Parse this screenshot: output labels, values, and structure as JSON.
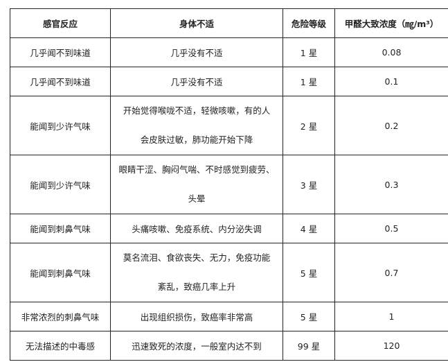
{
  "headers": [
    "感官反应",
    "身体不适",
    "危险等级",
    "甲醛大致浓度（㎎/m³）"
  ],
  "rows": [
    {
      "sense": "几乎闻不到味道",
      "symptom": [
        "几乎没有不适"
      ],
      "level": "1 星",
      "conc": "0.08"
    },
    {
      "sense": "几乎闻不到味道",
      "symptom": [
        "几乎没有不适"
      ],
      "level": "1 星",
      "conc": "0.1"
    },
    {
      "sense": "能闻到少许气味",
      "symptom": [
        "开始觉得喉咙不适，轻微咳嗽，有的人",
        "会皮肤过敏，肺功能开始下降"
      ],
      "level": "2 星",
      "conc": "0.2"
    },
    {
      "sense": "能闻到少许气味",
      "symptom": [
        "眼睛干涩、胸闷气喘、不时感觉到疲劳、",
        "头晕"
      ],
      "level": "3 星",
      "conc": "0.3"
    },
    {
      "sense": "能闻到刺鼻气味",
      "symptom": [
        "头痛咳嗽、免疫系统、内分泌失调"
      ],
      "level": "4 星",
      "conc": "0.5"
    },
    {
      "sense": "能闻到刺鼻气味",
      "symptom": [
        "莫名流泪、食欲丧失、无力，免疫功能",
        "紊乱，致癌几率上升"
      ],
      "level": "5 星",
      "conc": "0.7"
    },
    {
      "sense": "非常浓烈的刺鼻气味",
      "symptom": [
        "出现组织损伤，致癌率非常高"
      ],
      "level": "5 星",
      "conc": "1"
    },
    {
      "sense": "无法描述的中毒感",
      "symptom": [
        "迅速致死的浓度，一般室内达不到"
      ],
      "level": "99 星",
      "conc": "120"
    }
  ]
}
